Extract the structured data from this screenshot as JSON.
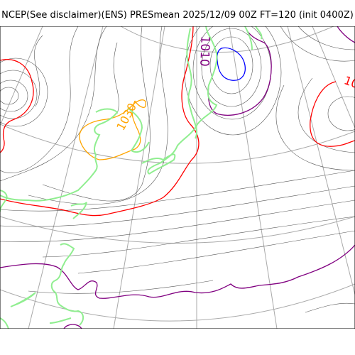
{
  "header": {
    "title": "NCEP(See disclaimer)(ENS) PRESmean 2025/12/09 00Z FT=120 (init 0400Z)"
  },
  "map": {
    "contour_labels": {
      "low_center_label": "1010",
      "high_left_label": "1030",
      "right_edge_label": "10"
    },
    "colors": {
      "graticule": "#a9a9a9",
      "isobar": "#555555",
      "coastline": "#90ee90",
      "contour_red": "#ff0000",
      "contour_purple": "#800080",
      "contour_blue": "#0000ff",
      "contour_orange": "#ffa500"
    }
  }
}
